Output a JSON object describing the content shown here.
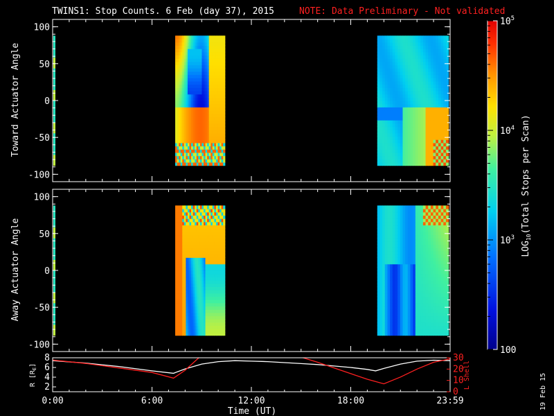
{
  "title": {
    "main": "TWINS1: Stop Counts.  6 Feb (day  37), 2015",
    "note": "NOTE: Data Preliminary - Not validated"
  },
  "print_date": "19 Feb 15",
  "colors": {
    "note": "#ff2020",
    "r_line": "#ffffff",
    "l_line": "#ff2020",
    "fill": "#000000"
  },
  "colorbar": {
    "label": "LOG10(Total Stops per Scan)",
    "label_prefix": "LOG",
    "label_sub": "10",
    "label_suffix": "(Total Stops per Scan)",
    "ticks": [
      {
        "value": 100,
        "base": "100",
        "exp": ""
      },
      {
        "value": 1000,
        "base": "10",
        "exp": "3"
      },
      {
        "value": 10000,
        "base": "10",
        "exp": "4"
      },
      {
        "value": 100000,
        "base": "10",
        "exp": "5"
      }
    ]
  },
  "chart_data": [
    {
      "type": "heatmap",
      "panel": "toward",
      "ylabel": "Toward Actuator Angle",
      "ylim": [
        -110,
        110
      ],
      "yticks": [
        "100",
        "50",
        "0",
        "-50",
        "-100"
      ],
      "zscale": "log",
      "zlim": [
        100,
        100000
      ],
      "data_intervals_hours": [
        [
          7.4,
          10.4
        ],
        [
          19.6,
          23.9
        ]
      ],
      "angle_range": [
        -88,
        88
      ]
    },
    {
      "type": "heatmap",
      "panel": "away",
      "ylabel": "Away Actuator Angle",
      "ylim": [
        -110,
        110
      ],
      "yticks": [
        "100",
        "50",
        "0",
        "-50",
        "-100"
      ],
      "zscale": "log",
      "zlim": [
        100,
        100000
      ],
      "data_intervals_hours": [
        [
          7.4,
          10.4
        ],
        [
          19.6,
          23.9
        ]
      ],
      "angle_range": [
        -88,
        88
      ]
    },
    {
      "type": "line",
      "panel": "orbit",
      "xlabel": "Time (UT)",
      "xlim": [
        0,
        24
      ],
      "xticks": [
        "0:00",
        "6:00",
        "12:00",
        "18:00",
        "23:59"
      ],
      "ylabel": "R [RE]",
      "ylabel_base": "R [R",
      "ylabel_sub": "E",
      "ylabel_end": "]",
      "ylim": [
        1,
        8
      ],
      "yticks": [
        "8",
        "6",
        "4",
        "2"
      ],
      "y2label": "L Shell",
      "y2lim": [
        0,
        30
      ],
      "y2ticks": [
        "30",
        "20",
        "10",
        "0"
      ],
      "series": [
        {
          "axis": "left",
          "x": [
            0,
            2,
            4,
            6,
            7.3,
            8,
            9,
            10,
            11,
            12,
            13,
            14,
            15,
            16,
            17,
            18,
            19,
            19.5,
            20,
            21,
            22,
            23,
            24
          ],
          "y": [
            7.4,
            6.9,
            6.2,
            5.3,
            4.8,
            5.7,
            6.7,
            7.2,
            7.4,
            7.3,
            7.2,
            7.0,
            6.8,
            6.6,
            6.3,
            6.0,
            5.6,
            5.3,
            5.8,
            6.7,
            7.3,
            7.5,
            7.4
          ]
        },
        {
          "axis": "right",
          "x": [
            0,
            2,
            4,
            6,
            7.3,
            8,
            8.9,
            14.9,
            16,
            17,
            18,
            19,
            20,
            21,
            22,
            23,
            24
          ],
          "y": [
            28,
            25,
            21,
            17,
            12,
            19,
            31,
            31,
            26,
            21,
            16,
            11,
            7,
            13,
            20,
            26,
            29
          ]
        }
      ]
    }
  ]
}
